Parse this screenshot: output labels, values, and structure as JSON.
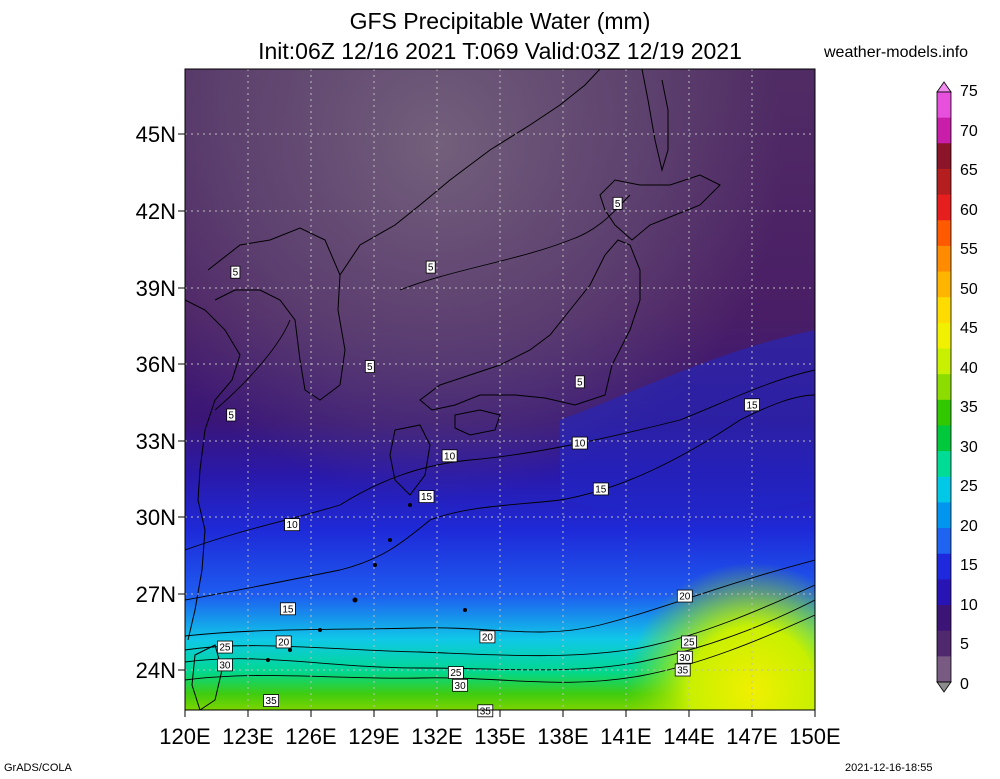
{
  "title": {
    "line1": "GFS Precipitable Water (mm)",
    "line2": "Init:06Z 12/16 2021 T:069 Valid:03Z 12/19 2021"
  },
  "source": "weather-models.info",
  "footer": {
    "left": "GrADS/COLA",
    "right": "2021-12-16-18:55"
  },
  "lat_labels": [
    "45N",
    "42N",
    "39N",
    "36N",
    "33N",
    "30N",
    "27N",
    "24N"
  ],
  "lon_labels": [
    "120E",
    "123E",
    "126E",
    "129E",
    "132E",
    "135E",
    "138E",
    "141E",
    "144E",
    "147E",
    "150E"
  ],
  "colorbar": {
    "labels": [
      "75",
      "70",
      "65",
      "60",
      "55",
      "50",
      "45",
      "40",
      "35",
      "30",
      "25",
      "20",
      "15",
      "10",
      "5",
      "0"
    ],
    "colors": [
      "#f08cf0",
      "#e650dc",
      "#c81eaa",
      "#8c1428",
      "#b41e1e",
      "#e61e1e",
      "#ff5a00",
      "#ff8c00",
      "#ffb400",
      "#ffdc00",
      "#f0f000",
      "#c8f000",
      "#8cdc00",
      "#32c800",
      "#00c83c",
      "#00dc96",
      "#00c8e6",
      "#0096f0",
      "#1e64f0",
      "#1e28dc",
      "#2814b4",
      "#3c1478",
      "#50286e",
      "#785a82",
      "#8c8c8c"
    ],
    "colors_label": "top to bottom"
  },
  "contour_labels": [
    {
      "text": "5",
      "lon": 122.4,
      "lat": 39.6
    },
    {
      "text": "5",
      "lon": 131.7,
      "lat": 39.8
    },
    {
      "text": "5",
      "lon": 140.6,
      "lat": 42.3
    },
    {
      "text": "5",
      "lon": 128.8,
      "lat": 35.9
    },
    {
      "text": "5",
      "lon": 122.2,
      "lat": 34.0
    },
    {
      "text": "5",
      "lon": 138.8,
      "lat": 35.3
    },
    {
      "text": "10",
      "lon": 132.6,
      "lat": 32.4
    },
    {
      "text": "10",
      "lon": 138.8,
      "lat": 32.9
    },
    {
      "text": "10",
      "lon": 125.1,
      "lat": 29.7
    },
    {
      "text": "15",
      "lon": 131.5,
      "lat": 30.8
    },
    {
      "text": "15",
      "lon": 139.8,
      "lat": 31.1
    },
    {
      "text": "15",
      "lon": 147.0,
      "lat": 34.4
    },
    {
      "text": "15",
      "lon": 124.9,
      "lat": 26.4
    },
    {
      "text": "20",
      "lon": 124.7,
      "lat": 25.1
    },
    {
      "text": "20",
      "lon": 134.4,
      "lat": 25.3
    },
    {
      "text": "20",
      "lon": 143.8,
      "lat": 26.9
    },
    {
      "text": "25",
      "lon": 121.9,
      "lat": 24.9
    },
    {
      "text": "25",
      "lon": 144.0,
      "lat": 25.1
    },
    {
      "text": "25",
      "lon": 132.9,
      "lat": 23.9
    },
    {
      "text": "30",
      "lon": 121.9,
      "lat": 24.2
    },
    {
      "text": "30",
      "lon": 133.1,
      "lat": 23.4
    },
    {
      "text": "30",
      "lon": 143.8,
      "lat": 24.5
    },
    {
      "text": "35",
      "lon": 143.7,
      "lat": 24.0
    },
    {
      "text": "35",
      "lon": 124.1,
      "lat": 22.8
    },
    {
      "text": "35",
      "lon": 134.3,
      "lat": 22.4
    }
  ]
}
